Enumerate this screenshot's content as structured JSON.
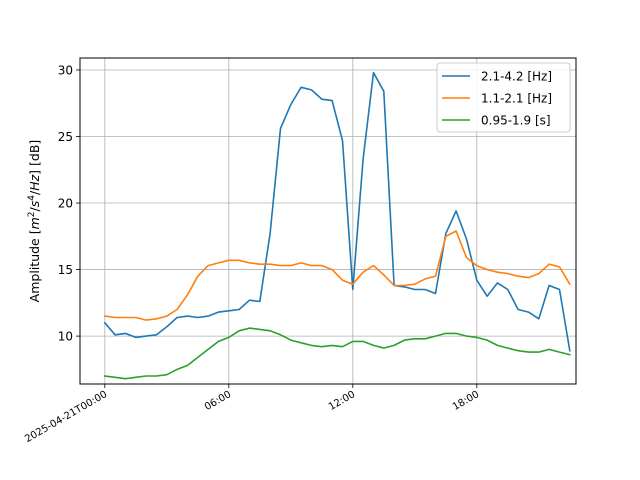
{
  "chart_data": {
    "type": "line",
    "ylabel": "Amplitude [m²/s⁴/Hz] [dB]",
    "xlabel": "",
    "ylim": [
      6.4,
      30.9
    ],
    "xlim_hours": [
      -1.2,
      22.8
    ],
    "grid": true,
    "legend_position": "top-right",
    "yticks": [
      10,
      15,
      20,
      25,
      30
    ],
    "xticks": [
      {
        "hour": 0,
        "label": "2025-04-21T00:00"
      },
      {
        "hour": 6,
        "label": "06:00"
      },
      {
        "hour": 12,
        "label": "12:00"
      },
      {
        "hour": 18,
        "label": "18:00"
      }
    ],
    "x_hours": [
      0,
      0.5,
      1,
      1.5,
      2,
      2.5,
      3,
      3.5,
      4,
      4.5,
      5,
      5.5,
      6,
      6.5,
      7,
      7.5,
      8,
      8.5,
      9,
      9.5,
      10,
      10.5,
      11,
      11.5,
      12,
      12.5,
      13,
      13.5,
      14,
      14.5,
      15,
      15.5,
      16,
      16.5,
      17,
      17.5,
      18,
      18.5,
      19,
      19.5,
      20,
      20.5,
      21,
      21.5,
      22,
      22.5
    ],
    "series": [
      {
        "name": "2.1-4.2 [Hz]",
        "color": "#1f77b4",
        "values": [
          11.0,
          10.1,
          10.2,
          9.9,
          10.0,
          10.1,
          10.7,
          11.4,
          11.5,
          11.4,
          11.5,
          11.8,
          11.9,
          12.0,
          12.7,
          12.6,
          17.7,
          25.6,
          27.4,
          28.7,
          28.5,
          27.8,
          27.7,
          24.7,
          13.5,
          23.3,
          29.8,
          28.4,
          13.8,
          13.7,
          13.5,
          13.5,
          13.2,
          17.7,
          19.4,
          17.3,
          14.2,
          13.0,
          14.0,
          13.5,
          12.0,
          11.8,
          11.3,
          13.8,
          13.5,
          8.9
        ]
      },
      {
        "name": "1.1-2.1 [Hz]",
        "color": "#ff7f0e",
        "values": [
          11.5,
          11.4,
          11.4,
          11.4,
          11.2,
          11.3,
          11.5,
          12.0,
          13.1,
          14.5,
          15.3,
          15.5,
          15.7,
          15.7,
          15.5,
          15.4,
          15.4,
          15.3,
          15.3,
          15.5,
          15.3,
          15.3,
          15.0,
          14.2,
          13.9,
          14.8,
          15.3,
          14.6,
          13.8,
          13.8,
          13.9,
          14.3,
          14.5,
          17.5,
          17.9,
          15.9,
          15.3,
          15.0,
          14.8,
          14.7,
          14.5,
          14.4,
          14.7,
          15.4,
          15.2,
          13.9
        ]
      },
      {
        "name": "0.95-1.9 [s]",
        "color": "#2ca02c",
        "values": [
          7.0,
          6.9,
          6.8,
          6.9,
          7.0,
          7.0,
          7.1,
          7.5,
          7.8,
          8.4,
          9.0,
          9.6,
          9.9,
          10.4,
          10.6,
          10.5,
          10.4,
          10.1,
          9.7,
          9.5,
          9.3,
          9.2,
          9.3,
          9.2,
          9.6,
          9.6,
          9.3,
          9.1,
          9.3,
          9.7,
          9.8,
          9.8,
          10.0,
          10.2,
          10.2,
          10.0,
          9.9,
          9.7,
          9.3,
          9.1,
          8.9,
          8.8,
          8.8,
          9.0,
          8.8,
          8.6
        ]
      }
    ]
  }
}
